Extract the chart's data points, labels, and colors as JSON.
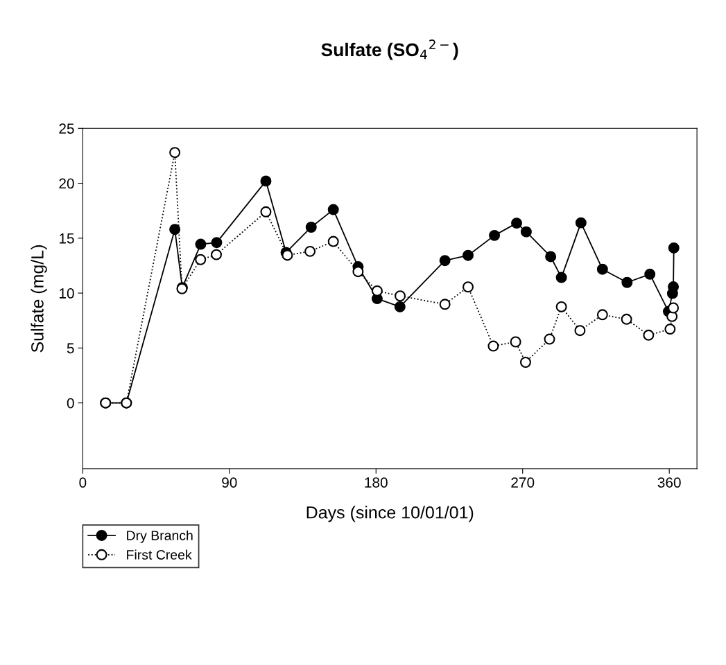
{
  "chart_data": {
    "type": "line",
    "title": "Sulfate (SO$_{4}$$^{2−}$)",
    "xlabel": "Days (since 10/01/01)",
    "ylabel": "Sulfate (mg/L)",
    "xlim": [
      0,
      377
    ],
    "xticks": [
      0,
      90,
      180,
      270,
      360
    ],
    "ylim": [
      -6,
      25
    ],
    "yticks": [
      0,
      5,
      10,
      15,
      20,
      25
    ],
    "grid": false,
    "legend": "bottom left",
    "marker": "circle",
    "series": [
      {
        "name": "Dry Branch",
        "color": "#000000",
        "line_style": "solid",
        "x": [
          14.0,
          26.8,
          56.5,
          61.1,
          72.4,
          82.2,
          112.4,
          124.8,
          140.2,
          153.8,
          169.0,
          180.7,
          194.7,
          222.3,
          236.5,
          252.7,
          266.3,
          272.2,
          287.2,
          293.8,
          305.8,
          319.0,
          334.1,
          348.1,
          359.5,
          362.0,
          362.5,
          362.8
        ],
        "values": [
          0,
          0,
          15.8,
          10.5,
          14.45,
          14.6,
          20.2,
          13.7,
          16.0,
          17.6,
          12.4,
          9.5,
          8.75,
          12.96,
          13.43,
          15.25,
          16.37,
          15.58,
          13.32,
          11.42,
          16.4,
          12.17,
          10.97,
          11.72,
          8.33,
          9.97,
          10.57,
          14.11
        ]
      },
      {
        "name": "First Creek",
        "color": "#ffffff",
        "line_style": "dotted",
        "x": [
          14.0,
          26.8,
          56.5,
          60.9,
          72.3,
          82.0,
          112.4,
          125.6,
          139.5,
          153.8,
          169.0,
          180.7,
          194.8,
          222.3,
          236.5,
          252.0,
          265.7,
          271.8,
          286.5,
          293.8,
          305.2,
          319.0,
          333.8,
          347.3,
          360.5,
          361.7,
          362.5
        ],
        "values": [
          0,
          0,
          22.8,
          10.4,
          13.05,
          13.5,
          17.4,
          13.45,
          13.8,
          14.7,
          11.95,
          10.2,
          9.74,
          8.98,
          10.56,
          5.18,
          5.56,
          3.7,
          5.81,
          8.75,
          6.59,
          8.03,
          7.62,
          6.17,
          6.72,
          7.87,
          8.65
        ]
      }
    ]
  }
}
